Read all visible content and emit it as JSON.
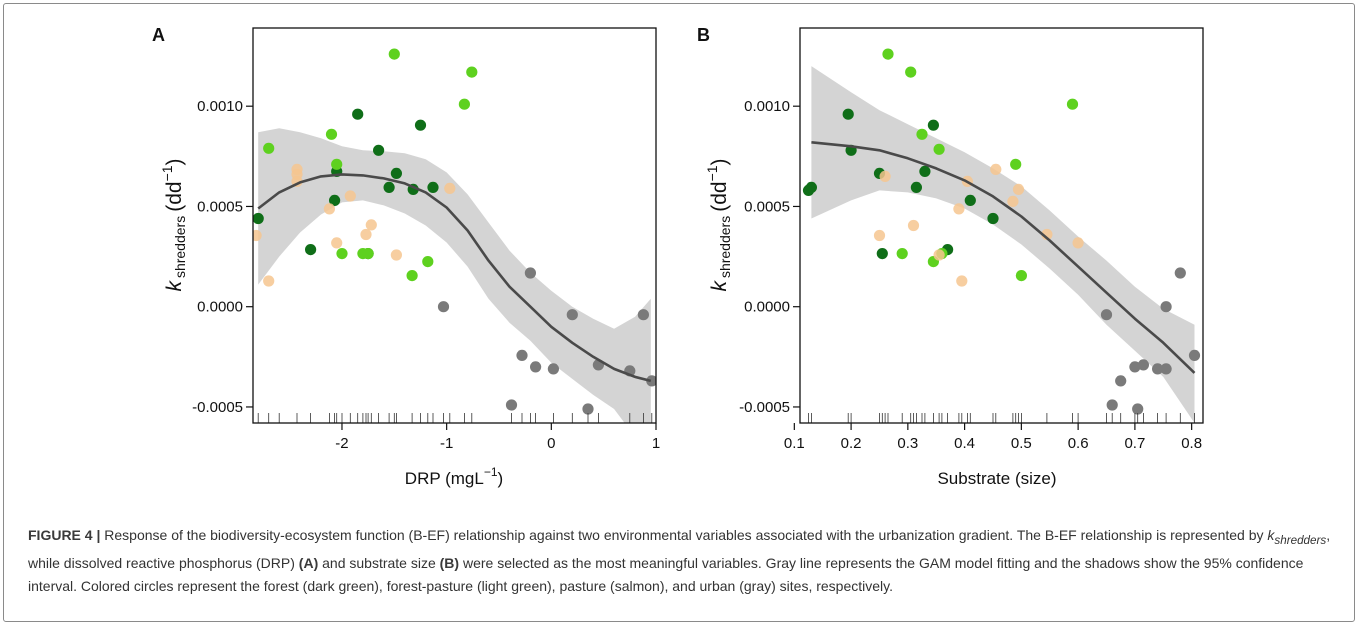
{
  "caption": {
    "label": "FIGURE 4 |",
    "text1": "Response of the biodiversity-ecosystem function (B-EF) relationship against two environmental variables associated with the urbanization gradient. The B-EF relationship is represented by ",
    "k": "k",
    "k_sub": "shredders",
    "text2": ", while dissolved reactive phosphorus (DRP) ",
    "panel_a": "(A)",
    "text3": " and substrate size ",
    "panel_b": "(B)",
    "text4": " were selected as the most meaningful variables. Gray line represents the GAM model fitting and the shadows show the 95% confidence interval. Colored circles represent the forest (dark green), forest-pasture (light green), pasture (salmon), and urban (gray) sites, respectively."
  },
  "colors": {
    "forest": "#0f6e18",
    "forest_pasture": "#5ed11f",
    "pasture": "#f6c58f",
    "urban": "#7a7a7a",
    "ci_band": "#d4d4d4",
    "fit_line": "#4a4a4a"
  },
  "chart_data": [
    {
      "type": "scatter",
      "panel_label": "A",
      "xlabel": "DRP  (mgL",
      "xlabel_sup": "−1",
      "xlabel_end": ")",
      "ylabel_k": "k",
      "ylabel_sub": "shredders",
      "ylabel_unit": "(dd",
      "ylabel_sup": "−1",
      "ylabel_end": ")",
      "xlim": [
        -2.85,
        1.0
      ],
      "ylim": [
        -0.00058,
        0.00139
      ],
      "x_ticks": [
        -2,
        -1,
        0,
        1
      ],
      "x_tick_labels": [
        "-2",
        "-1",
        "0",
        "1"
      ],
      "y_ticks": [
        0.001,
        0.0005,
        0.0,
        -0.0005
      ],
      "y_tick_labels": [
        "0.0010",
        "0.0005",
        "0.0000",
        "-0.0005"
      ],
      "series": [
        {
          "name": "forest",
          "points": [
            [
              -2.8,
              0.00044
            ],
            [
              -2.3,
              0.000285
            ],
            [
              -2.05,
              0.000675
            ],
            [
              -2.07,
              0.00053
            ],
            [
              -1.85,
              0.00096
            ],
            [
              -1.75,
              0.000265
            ],
            [
              -1.65,
              0.00078
            ],
            [
              -1.55,
              0.000595
            ],
            [
              -1.48,
              0.000665
            ],
            [
              -1.32,
              0.000585
            ],
            [
              -1.25,
              0.000905
            ],
            [
              -1.13,
              0.000595
            ]
          ]
        },
        {
          "name": "forest-pasture",
          "points": [
            [
              -2.7,
              0.00079
            ],
            [
              -2.1,
              0.00086
            ],
            [
              -2.05,
              0.00071
            ],
            [
              -2.0,
              0.000265
            ],
            [
              -1.8,
              0.000265
            ],
            [
              -1.75,
              0.000265
            ],
            [
              -1.5,
              0.00126
            ],
            [
              -1.33,
              0.000155
            ],
            [
              -1.18,
              0.000225
            ],
            [
              -0.83,
              0.00101
            ],
            [
              -0.76,
              0.00117
            ]
          ]
        },
        {
          "name": "pasture",
          "points": [
            [
              -2.82,
              0.000355
            ],
            [
              -2.7,
              0.000128
            ],
            [
              -2.43,
              0.000685
            ],
            [
              -2.43,
              0.00066
            ],
            [
              -2.43,
              0.000625
            ],
            [
              -2.12,
              0.000488
            ],
            [
              -2.05,
              0.000318
            ],
            [
              -1.92,
              0.000552
            ],
            [
              -1.77,
              0.00036
            ],
            [
              -1.72,
              0.000408
            ],
            [
              -1.48,
              0.000258
            ],
            [
              -0.97,
              0.00059
            ]
          ]
        },
        {
          "name": "urban",
          "points": [
            [
              -1.03,
              0.0
            ],
            [
              -0.38,
              -0.00049
            ],
            [
              -0.28,
              -0.000243
            ],
            [
              -0.2,
              0.000168
            ],
            [
              -0.15,
              -0.0003
            ],
            [
              0.02,
              -0.00031
            ],
            [
              0.2,
              -4e-05
            ],
            [
              0.35,
              -0.00051
            ],
            [
              0.45,
              -0.00029
            ],
            [
              0.75,
              -0.00032
            ],
            [
              0.88,
              -4e-05
            ],
            [
              0.96,
              -0.00037
            ]
          ]
        }
      ],
      "fit_line": [
        [
          -2.8,
          0.00049
        ],
        [
          -2.6,
          0.00057
        ],
        [
          -2.4,
          0.00062
        ],
        [
          -2.2,
          0.00065
        ],
        [
          -2.0,
          0.00066
        ],
        [
          -1.8,
          0.000655
        ],
        [
          -1.6,
          0.00064
        ],
        [
          -1.4,
          0.000615
        ],
        [
          -1.2,
          0.00057
        ],
        [
          -1.0,
          0.000495
        ],
        [
          -0.8,
          0.00038
        ],
        [
          -0.6,
          0.00023
        ],
        [
          -0.4,
          0.0001
        ],
        [
          -0.2,
          0.0
        ],
        [
          0.0,
          -0.0001
        ],
        [
          0.2,
          -0.00018
        ],
        [
          0.4,
          -0.00025
        ],
        [
          0.6,
          -0.00031
        ],
        [
          0.8,
          -0.00035
        ],
        [
          0.95,
          -0.00037
        ]
      ],
      "ci_upper": [
        [
          -2.8,
          0.00087
        ],
        [
          -2.6,
          0.00089
        ],
        [
          -2.4,
          0.00087
        ],
        [
          -2.2,
          0.00084
        ],
        [
          -2.0,
          0.0008
        ],
        [
          -1.8,
          0.00078
        ],
        [
          -1.6,
          0.000775
        ],
        [
          -1.4,
          0.000765
        ],
        [
          -1.2,
          0.000735
        ],
        [
          -1.0,
          0.00067
        ],
        [
          -0.8,
          0.00056
        ],
        [
          -0.6,
          0.00042
        ],
        [
          -0.4,
          0.00028
        ],
        [
          -0.2,
          0.00017
        ],
        [
          0.0,
          8e-05
        ],
        [
          0.2,
          0.0
        ],
        [
          0.4,
          -6e-05
        ],
        [
          0.6,
          -0.00011
        ],
        [
          0.8,
          -5e-05
        ],
        [
          0.95,
          4e-05
        ]
      ],
      "ci_lower": [
        [
          -2.8,
          0.00011
        ],
        [
          -2.6,
          0.00025
        ],
        [
          -2.4,
          0.00037
        ],
        [
          -2.2,
          0.00046
        ],
        [
          -2.0,
          0.00052
        ],
        [
          -1.8,
          0.00053
        ],
        [
          -1.6,
          0.000505
        ],
        [
          -1.4,
          0.000465
        ],
        [
          -1.2,
          0.000405
        ],
        [
          -1.0,
          0.00032
        ],
        [
          -0.8,
          0.0002
        ],
        [
          -0.6,
          4e-05
        ],
        [
          -0.4,
          -8e-05
        ],
        [
          -0.2,
          -0.00017
        ],
        [
          0.0,
          -0.00028
        ],
        [
          0.2,
          -0.00036
        ],
        [
          0.4,
          -0.00044
        ],
        [
          0.6,
          -0.00051
        ],
        [
          0.8,
          -0.00065
        ],
        [
          0.95,
          -0.00078
        ]
      ],
      "rug_x": [
        -2.8,
        -2.7,
        -2.6,
        -2.43,
        -2.3,
        -2.12,
        -2.07,
        -2.05,
        -2.0,
        -1.92,
        -1.85,
        -1.8,
        -1.77,
        -1.75,
        -1.72,
        -1.65,
        -1.55,
        -1.5,
        -1.48,
        -1.33,
        -1.25,
        -1.18,
        -1.13,
        -1.03,
        -0.97,
        -0.83,
        -0.76,
        -0.38,
        -0.28,
        -0.2,
        -0.15,
        0.02,
        0.2,
        0.35,
        0.45,
        0.75,
        0.88,
        0.96
      ]
    },
    {
      "type": "scatter",
      "panel_label": "B",
      "xlabel": "Substrate (size)",
      "ylabel_k": "k",
      "ylabel_sub": "shredders",
      "ylabel_unit": "(dd",
      "ylabel_sup": "−1",
      "ylabel_end": ")",
      "xlim": [
        0.11,
        0.82
      ],
      "ylim": [
        -0.00058,
        0.00139
      ],
      "x_ticks": [
        0.1,
        0.2,
        0.3,
        0.4,
        0.5,
        0.6,
        0.7,
        0.8
      ],
      "x_tick_labels": [
        "0.1",
        "0.2",
        "0.3",
        "0.4",
        "0.5",
        "0.6",
        "0.7",
        "0.8"
      ],
      "y_ticks": [
        0.001,
        0.0005,
        0.0,
        -0.0005
      ],
      "y_tick_labels": [
        "0.0010",
        "0.0005",
        "0.0000",
        "-0.0005"
      ],
      "series": [
        {
          "name": "forest",
          "points": [
            [
              0.125,
              0.00058
            ],
            [
              0.13,
              0.000595
            ],
            [
              0.195,
              0.00096
            ],
            [
              0.2,
              0.00078
            ],
            [
              0.25,
              0.000665
            ],
            [
              0.255,
              0.000265
            ],
            [
              0.315,
              0.000595
            ],
            [
              0.33,
              0.000675
            ],
            [
              0.345,
              0.000905
            ],
            [
              0.37,
              0.000285
            ],
            [
              0.41,
              0.00053
            ],
            [
              0.45,
              0.00044
            ]
          ]
        },
        {
          "name": "forest-pasture",
          "points": [
            [
              0.265,
              0.00126
            ],
            [
              0.29,
              0.000265
            ],
            [
              0.305,
              0.00117
            ],
            [
              0.325,
              0.00086
            ],
            [
              0.345,
              0.000225
            ],
            [
              0.355,
              0.000785
            ],
            [
              0.36,
              0.000265
            ],
            [
              0.49,
              0.00071
            ],
            [
              0.5,
              0.000155
            ],
            [
              0.59,
              0.00101
            ]
          ]
        },
        {
          "name": "pasture",
          "points": [
            [
              0.25,
              0.000355
            ],
            [
              0.26,
              0.00065
            ],
            [
              0.31,
              0.000405
            ],
            [
              0.355,
              0.000258
            ],
            [
              0.39,
              0.000488
            ],
            [
              0.395,
              0.000128
            ],
            [
              0.405,
              0.000625
            ],
            [
              0.455,
              0.000685
            ],
            [
              0.485,
              0.000525
            ],
            [
              0.495,
              0.000585
            ],
            [
              0.545,
              0.00036
            ],
            [
              0.6,
              0.000318
            ]
          ]
        },
        {
          "name": "urban",
          "points": [
            [
              0.65,
              -4e-05
            ],
            [
              0.66,
              -0.00049
            ],
            [
              0.675,
              -0.00037
            ],
            [
              0.7,
              -0.0003
            ],
            [
              0.705,
              -0.00051
            ],
            [
              0.715,
              -0.00029
            ],
            [
              0.74,
              -0.00031
            ],
            [
              0.755,
              0.0
            ],
            [
              0.755,
              -0.00031
            ],
            [
              0.78,
              0.000168
            ],
            [
              0.805,
              -0.000243
            ]
          ]
        }
      ],
      "fit_line": [
        [
          0.13,
          0.00082
        ],
        [
          0.2,
          0.0008
        ],
        [
          0.25,
          0.00078
        ],
        [
          0.3,
          0.00074
        ],
        [
          0.35,
          0.00069
        ],
        [
          0.4,
          0.00063
        ],
        [
          0.45,
          0.00055
        ],
        [
          0.5,
          0.00045
        ],
        [
          0.55,
          0.00033
        ],
        [
          0.6,
          0.0002
        ],
        [
          0.65,
          7e-05
        ],
        [
          0.7,
          -6e-05
        ],
        [
          0.75,
          -0.00018
        ],
        [
          0.805,
          -0.00033
        ]
      ],
      "ci_upper": [
        [
          0.13,
          0.0012
        ],
        [
          0.2,
          0.00107
        ],
        [
          0.25,
          0.00098
        ],
        [
          0.3,
          0.00091
        ],
        [
          0.35,
          0.00084
        ],
        [
          0.4,
          0.00077
        ],
        [
          0.45,
          0.00069
        ],
        [
          0.5,
          0.0006
        ],
        [
          0.55,
          0.00048
        ],
        [
          0.6,
          0.00035
        ],
        [
          0.65,
          0.00023
        ],
        [
          0.7,
          0.0001
        ],
        [
          0.75,
          -1e-05
        ],
        [
          0.805,
          -9e-05
        ]
      ],
      "ci_lower": [
        [
          0.13,
          0.00044
        ],
        [
          0.2,
          0.00053
        ],
        [
          0.25,
          0.00058
        ],
        [
          0.3,
          0.00057
        ],
        [
          0.35,
          0.00054
        ],
        [
          0.4,
          0.00049
        ],
        [
          0.45,
          0.00041
        ],
        [
          0.5,
          0.00031
        ],
        [
          0.55,
          0.00019
        ],
        [
          0.6,
          6e-05
        ],
        [
          0.65,
          -9e-05
        ],
        [
          0.7,
          -0.00022
        ],
        [
          0.75,
          -0.00035
        ],
        [
          0.805,
          -0.00058
        ]
      ],
      "rug_x": [
        0.125,
        0.13,
        0.195,
        0.2,
        0.25,
        0.255,
        0.26,
        0.265,
        0.29,
        0.305,
        0.31,
        0.315,
        0.325,
        0.33,
        0.345,
        0.355,
        0.36,
        0.37,
        0.39,
        0.395,
        0.405,
        0.41,
        0.45,
        0.455,
        0.485,
        0.49,
        0.495,
        0.5,
        0.545,
        0.59,
        0.6,
        0.65,
        0.66,
        0.675,
        0.7,
        0.705,
        0.715,
        0.74,
        0.755,
        0.78,
        0.805
      ]
    }
  ]
}
